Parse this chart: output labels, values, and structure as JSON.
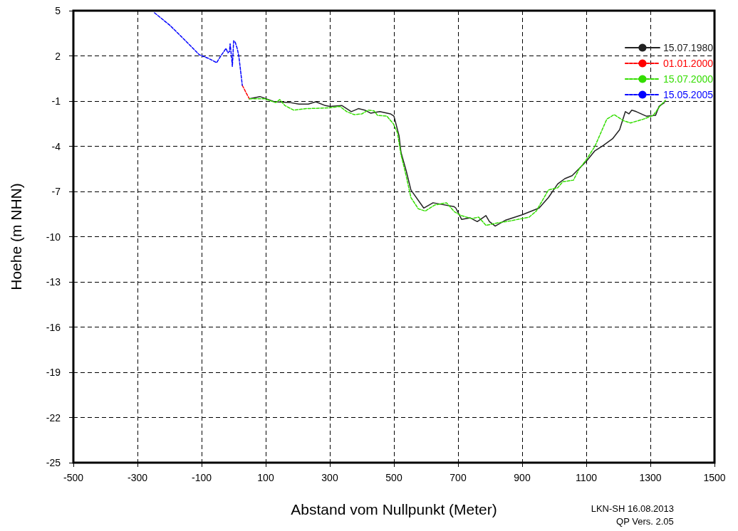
{
  "chart_data": {
    "type": "line",
    "xlabel": "Abstand vom Nullpunkt (Meter)",
    "ylabel": "Hoehe (m NHN)",
    "xlim": [
      -500,
      1500
    ],
    "xticks": [
      -500,
      -300,
      -100,
      100,
      300,
      500,
      700,
      900,
      1100,
      1300,
      1500
    ],
    "ylim": [
      -25,
      5
    ],
    "yticks": [
      -25,
      -22,
      -19,
      -16,
      -13,
      -10,
      -7,
      -4,
      -1,
      2,
      5
    ],
    "grid": true,
    "legend": "top right",
    "marker": "none",
    "annotations": [
      "LKN-SH 16.08.2013",
      "QP Vers. 2.05"
    ],
    "series": [
      {
        "name": "15.07.1980",
        "color": "#222222",
        "line_style": "solid",
        "x": [
          49,
          82,
          127,
          176,
          204,
          233,
          256,
          286,
          300,
          338,
          367,
          389,
          409,
          427,
          456,
          489,
          500,
          516,
          522,
          538,
          553,
          593,
          622,
          687,
          693,
          711,
          738,
          760,
          787,
          798,
          816,
          849,
          900,
          953,
          982,
          1011,
          1033,
          1056,
          1100,
          1127,
          1153,
          1182,
          1204,
          1222,
          1233,
          1242,
          1256,
          1287,
          1316,
          1327,
          1344
        ],
        "values": [
          -0.85,
          -0.7,
          -1.05,
          -1.1,
          -1.2,
          -1.2,
          -1.05,
          -1.3,
          -1.35,
          -1.3,
          -1.7,
          -1.5,
          -1.6,
          -1.8,
          -1.7,
          -1.85,
          -2.0,
          -3.3,
          -4.4,
          -5.6,
          -6.9,
          -8.1,
          -7.75,
          -8.0,
          -8.1,
          -8.85,
          -8.75,
          -9.0,
          -8.6,
          -9.0,
          -9.3,
          -8.9,
          -8.55,
          -8.1,
          -7.4,
          -6.5,
          -6.15,
          -5.95,
          -5.0,
          -4.3,
          -3.95,
          -3.5,
          -2.9,
          -1.7,
          -1.85,
          -1.6,
          -1.7,
          -2.0,
          -1.95,
          -1.35,
          -1.1
        ]
      },
      {
        "name": "01.01.2000",
        "color": "#ff0000",
        "line_style": "dashed",
        "x": [
          27,
          33,
          40,
          49
        ],
        "values": [
          0.04,
          -0.2,
          -0.5,
          -0.85
        ]
      },
      {
        "name": "15.07.2000",
        "color": "#33dd00",
        "line_style": "dashed",
        "x": [
          49,
          98,
          131,
          144,
          160,
          187,
          227,
          300,
          331,
          353,
          376,
          400,
          420,
          438,
          449,
          478,
          498,
          511,
          522,
          538,
          553,
          576,
          598,
          627,
          664,
          689,
          709,
          744,
          764,
          787,
          820,
          864,
          922,
          944,
          982,
          1011,
          1027,
          1060,
          1078,
          1100,
          1127,
          1164,
          1187,
          1216,
          1238,
          1278,
          1309,
          1331,
          1347
        ],
        "values": [
          -0.85,
          -0.85,
          -1.1,
          -0.9,
          -1.3,
          -1.6,
          -1.5,
          -1.45,
          -1.35,
          -1.7,
          -1.9,
          -1.85,
          -1.6,
          -1.65,
          -1.95,
          -2.0,
          -2.5,
          -3.1,
          -4.55,
          -5.95,
          -7.4,
          -8.15,
          -8.3,
          -7.9,
          -7.75,
          -8.35,
          -8.6,
          -8.8,
          -8.7,
          -9.25,
          -9.1,
          -8.95,
          -8.7,
          -8.3,
          -6.9,
          -6.75,
          -6.35,
          -6.25,
          -5.5,
          -4.9,
          -4.0,
          -2.2,
          -1.9,
          -2.3,
          -2.45,
          -2.2,
          -1.95,
          -1.3,
          -0.95
        ]
      },
      {
        "name": "15.05.2005",
        "color": "#0000ff",
        "line_style": "dashed",
        "x": [
          -247,
          -200,
          -150,
          -107,
          -80,
          -53,
          -40,
          -30,
          -24,
          -18,
          -13,
          -11,
          -7,
          -4,
          0,
          5,
          11,
          16,
          20,
          27
        ],
        "values": [
          4.86,
          4.05,
          3.0,
          2.07,
          1.85,
          1.55,
          2.0,
          2.3,
          2.5,
          2.2,
          2.3,
          2.8,
          2.0,
          1.3,
          3.0,
          2.9,
          2.5,
          2.0,
          1.3,
          0.04
        ]
      }
    ]
  }
}
